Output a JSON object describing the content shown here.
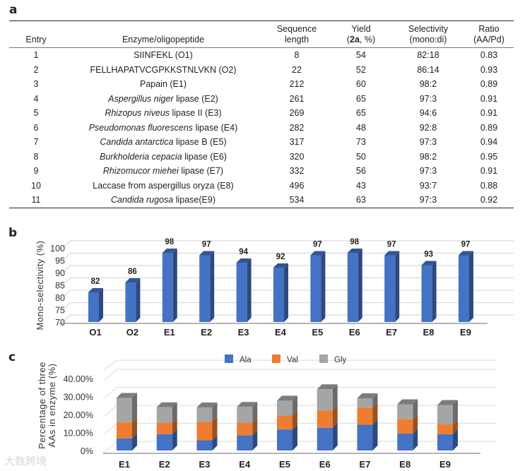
{
  "panel_labels": {
    "a": "a",
    "b": "b",
    "c": "c"
  },
  "table": {
    "headers": {
      "entry": "Entry",
      "enzyme": "Enzyme/oligopeptide",
      "seq_1": "Sequence",
      "seq_2": "length",
      "yield_1": "Yield",
      "yield_2a": "2a",
      "yield_2b": ", %)",
      "yield_open": "(",
      "sel_1": "Selectivity",
      "sel_2": "(mono:di)",
      "ratio_1": "Ratio",
      "ratio_2": "(AA/Pd)"
    },
    "rows": [
      {
        "entry": "1",
        "italic": "",
        "name": "SIINFEKL (O1)",
        "length": "8",
        "yield": "54",
        "selectivity": "82:18",
        "ratio": "0.83"
      },
      {
        "entry": "2",
        "italic": "",
        "name": "FELLHAPATVCGPKKSTNLVKN (O2)",
        "length": "22",
        "yield": "52",
        "selectivity": "86:14",
        "ratio": "0.93"
      },
      {
        "entry": "3",
        "italic": "",
        "name": "Papain (E1)",
        "length": "212",
        "yield": "60",
        "selectivity": "98:2",
        "ratio": "0.89"
      },
      {
        "entry": "4",
        "italic": "Aspergillus niger",
        "name": " lipase (E2)",
        "length": "261",
        "yield": "65",
        "selectivity": "97:3",
        "ratio": "0.91"
      },
      {
        "entry": "5",
        "italic": "Rhizopus niveus",
        "name": " lipase II (E3)",
        "length": "269",
        "yield": "65",
        "selectivity": "94:6",
        "ratio": "0.91"
      },
      {
        "entry": "6",
        "italic": "Pseudomonas fluorescens",
        "name": " lipase (E4)",
        "length": "282",
        "yield": "48",
        "selectivity": "92:8",
        "ratio": "0.89"
      },
      {
        "entry": "7",
        "italic": "Candida antarctica",
        "name": " lipase B (E5)",
        "length": "317",
        "yield": "73",
        "selectivity": "97:3",
        "ratio": "0.94"
      },
      {
        "entry": "8",
        "italic": "Burkholderia cepacia",
        "name": " lipase (E6)",
        "length": "320",
        "yield": "50",
        "selectivity": "98:2",
        "ratio": "0.95"
      },
      {
        "entry": "9",
        "italic": "Rhizomucor miehei",
        "name": " lipase (E7)",
        "length": "332",
        "yield": "56",
        "selectivity": "97:3",
        "ratio": "0.91"
      },
      {
        "entry": "10",
        "italic": "",
        "name": "Laccase from aspergillus oryza (E8)",
        "length": "496",
        "yield": "43",
        "selectivity": "93:7",
        "ratio": "0.88"
      },
      {
        "entry": "11",
        "italic": "Candida rugosa",
        "name": " lipase(E9)",
        "length": "534",
        "yield": "63",
        "selectivity": "97:3",
        "ratio": "0.92"
      }
    ]
  },
  "chart_data": [
    {
      "type": "bar",
      "title": "",
      "ylabel": "Mono-selectivity (%)",
      "xlabel": "",
      "categories": [
        "O1",
        "O2",
        "E1",
        "E2",
        "E3",
        "E4",
        "E5",
        "E6",
        "E7",
        "E8",
        "E9"
      ],
      "values": [
        82,
        86,
        98,
        97,
        94,
        92,
        97,
        98,
        97,
        93,
        97
      ],
      "ylim": [
        70,
        100
      ],
      "yticks": [
        "70",
        "75",
        "80",
        "85",
        "90",
        "95",
        "100"
      ],
      "data_labels": true,
      "grid": true,
      "color": "#4472c4"
    },
    {
      "type": "bar",
      "stacked": true,
      "title": "",
      "ylabel": "Percentage of three AAs in enzyme (%)",
      "ylabel_lines": [
        "Percentage of three",
        "AAs in enzyme (%)"
      ],
      "categories": [
        "E1",
        "E2",
        "E3",
        "E4",
        "E5",
        "E6",
        "E7",
        "E8",
        "E9"
      ],
      "series": [
        {
          "name": "Ala",
          "color": "#4472c4",
          "values": [
            6.7,
            9.1,
            5.7,
            8.4,
            11.7,
            12.6,
            14.3,
            9.4,
            9.1
          ]
        },
        {
          "name": "Val",
          "color": "#ed7d31",
          "values": [
            8.9,
            6.2,
            10.3,
            6.9,
            7.7,
            9.7,
            9.5,
            8.0,
            5.4
          ]
        },
        {
          "name": "Gly",
          "color": "#a5a5a5",
          "values": [
            13.6,
            8.7,
            7.9,
            8.9,
            8.3,
            11.7,
            5.2,
            8.3,
            10.8
          ]
        }
      ],
      "ylim": [
        0,
        40
      ],
      "yticks": [
        "0%",
        "10.00%",
        "20.00%",
        "30.00%",
        "40.00%"
      ],
      "legend": "top",
      "grid": true
    }
  ],
  "watermark": "大数跨境"
}
